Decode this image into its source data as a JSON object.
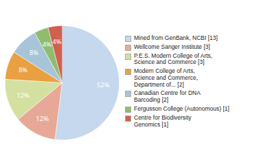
{
  "chart_data": {
    "type": "pie",
    "categories": [
      "Mined from GenBank, NCBI [13]",
      "Wellcome Sanger Institute [3]",
      "P.E.S. Modern College of Arts,\nScience and Commerce [3]",
      "Modern College of Arts,\nScience and Commerce,\nDepartment of... [2]",
      "Canadian Centre for DNA\nBarcoding [2]",
      "Fergusson College (Autonomous) [1]",
      "Centre for Biodiversity\nGenomics [1]"
    ],
    "values": [
      52,
      12,
      12,
      8,
      8,
      4,
      4
    ],
    "value_labels": [
      "52%",
      "12%",
      "12%",
      "8%",
      "8%",
      "4%",
      "4%"
    ],
    "colors": [
      "#c5d8ed",
      "#e8a898",
      "#d4e0a0",
      "#e8a040",
      "#a8c4d8",
      "#90bc70",
      "#d06050"
    ],
    "data_labels": true,
    "legend": "right"
  }
}
